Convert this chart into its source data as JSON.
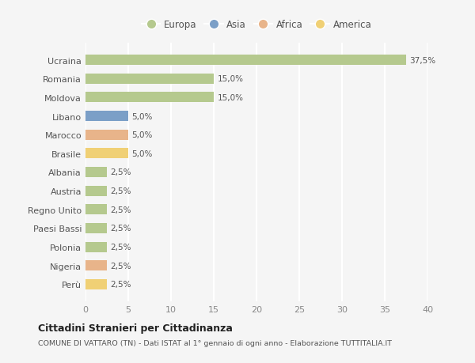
{
  "countries": [
    "Ucraina",
    "Romania",
    "Moldova",
    "Libano",
    "Marocco",
    "Brasile",
    "Albania",
    "Austria",
    "Regno Unito",
    "Paesi Bassi",
    "Polonia",
    "Nigeria",
    "Perù"
  ],
  "values": [
    37.5,
    15.0,
    15.0,
    5.0,
    5.0,
    5.0,
    2.5,
    2.5,
    2.5,
    2.5,
    2.5,
    2.5,
    2.5
  ],
  "labels": [
    "37,5%",
    "15,0%",
    "15,0%",
    "5,0%",
    "5,0%",
    "5,0%",
    "2,5%",
    "2,5%",
    "2,5%",
    "2,5%",
    "2,5%",
    "2,5%",
    "2,5%"
  ],
  "colors": [
    "#b5c98e",
    "#b5c98e",
    "#b5c98e",
    "#7b9fc7",
    "#e8b48a",
    "#f0d075",
    "#b5c98e",
    "#b5c98e",
    "#b5c98e",
    "#b5c98e",
    "#b5c98e",
    "#e8b48a",
    "#f0d075"
  ],
  "legend_labels": [
    "Europa",
    "Asia",
    "Africa",
    "America"
  ],
  "legend_colors": [
    "#b5c98e",
    "#7b9fc7",
    "#e8b48a",
    "#f0d075"
  ],
  "title": "Cittadini Stranieri per Cittadinanza",
  "subtitle": "COMUNE DI VATTARO (TN) - Dati ISTAT al 1° gennaio di ogni anno - Elaborazione TUTTITALIA.IT",
  "xlim": [
    0,
    40
  ],
  "xticks": [
    0,
    5,
    10,
    15,
    20,
    25,
    30,
    35,
    40
  ],
  "background_color": "#f5f5f5",
  "grid_color": "#ffffff",
  "bar_height": 0.55
}
